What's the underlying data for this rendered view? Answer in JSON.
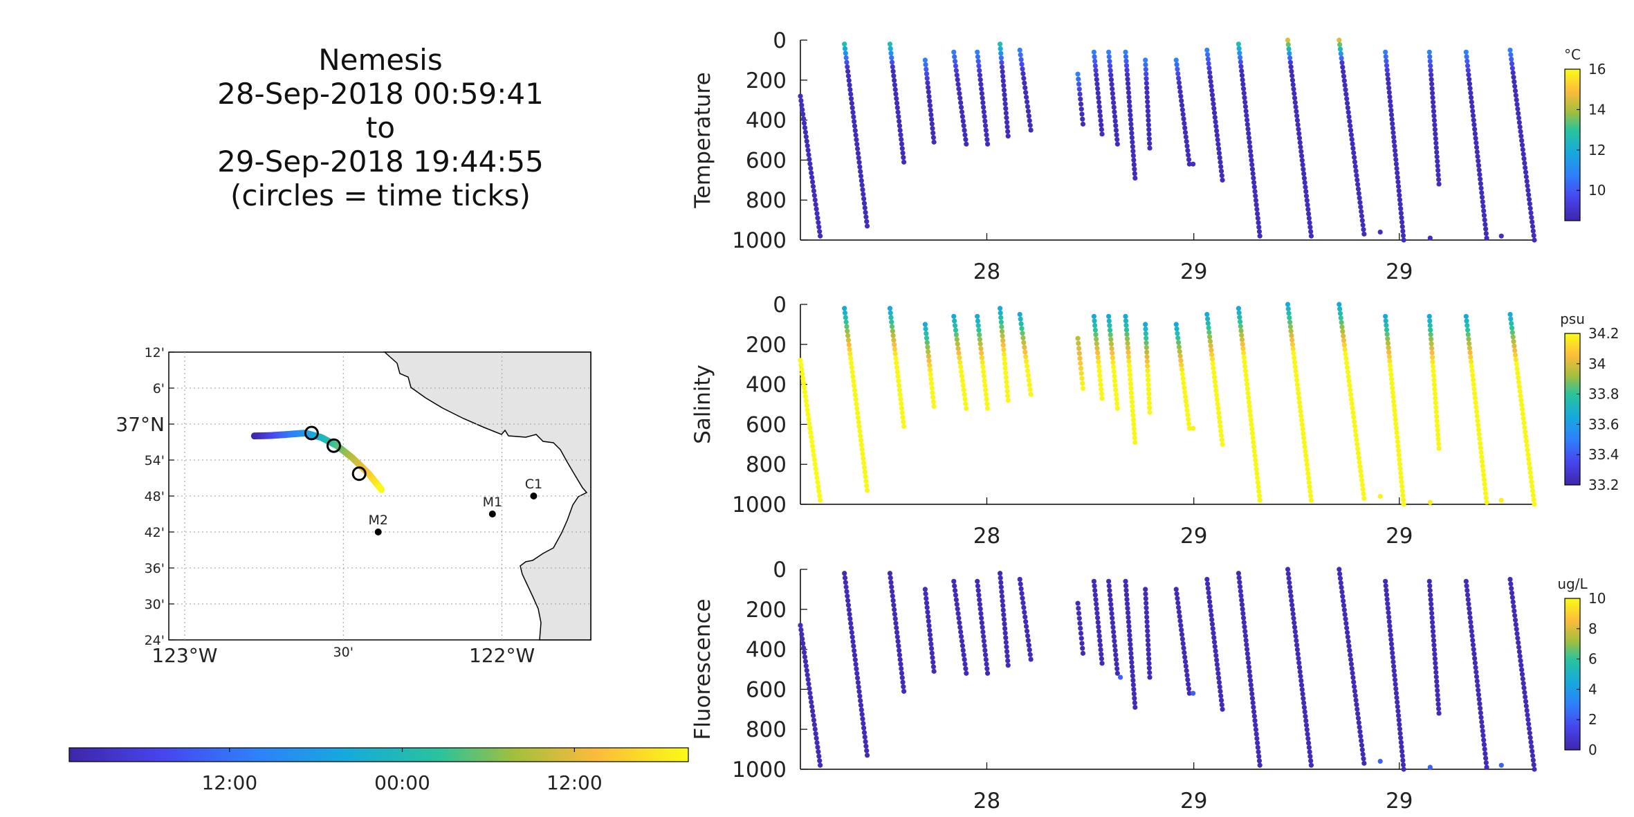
{
  "title_lines": [
    "Nemesis",
    "28-Sep-2018 00:59:41",
    "to",
    "29-Sep-2018 19:44:55",
    "(circles = time ticks)"
  ],
  "map": {
    "lat_ticks": [
      "12'",
      "6'",
      "37°N",
      "54'",
      "48'",
      "42'",
      "36'",
      "30'",
      "24'"
    ],
    "lon_ticks": [
      "123°W",
      "30'",
      "122°W"
    ],
    "stations": [
      {
        "label": "M2",
        "lon": -122.39,
        "lat": 36.7
      },
      {
        "label": "M1",
        "lon": -122.03,
        "lat": 36.75
      },
      {
        "label": "C1",
        "lon": -121.9,
        "lat": 36.8
      }
    ],
    "track": [
      [
        -122.78,
        36.967
      ],
      [
        -122.73,
        36.968
      ],
      [
        -122.68,
        36.971
      ],
      [
        -122.62,
        36.975
      ],
      [
        -122.57,
        36.963
      ],
      [
        -122.52,
        36.94
      ],
      [
        -122.47,
        36.905
      ],
      [
        -122.42,
        36.862
      ],
      [
        -122.38,
        36.818
      ]
    ],
    "time_circles": [
      [
        -122.6,
        36.975
      ],
      [
        -122.53,
        36.94
      ],
      [
        -122.45,
        36.862
      ]
    ]
  },
  "time_colorbar": {
    "tick_labels": [
      "12:00",
      "00:00",
      "12:00"
    ],
    "tick_fractions": [
      0.259,
      0.538,
      0.816
    ]
  },
  "chart_data": [
    {
      "type": "scatter",
      "ylabel": "Temperature",
      "units": "°C",
      "x_tick_labels": [
        "28",
        "29",
        "29"
      ],
      "y_ticks": [
        0,
        200,
        400,
        600,
        800,
        1000
      ],
      "ylim": [
        1000,
        0
      ],
      "clim": [
        8.5,
        16
      ],
      "colorbar_ticks": [
        10,
        12,
        14,
        16
      ]
    },
    {
      "type": "scatter",
      "ylabel": "Salinity",
      "units": "psu",
      "x_tick_labels": [
        "28",
        "29",
        "29"
      ],
      "y_ticks": [
        0,
        200,
        400,
        600,
        800,
        1000
      ],
      "ylim": [
        1000,
        0
      ],
      "clim": [
        33.2,
        34.2
      ],
      "colorbar_ticks": [
        33.2,
        33.4,
        33.6,
        33.8,
        34,
        34.2
      ]
    },
    {
      "type": "scatter",
      "ylabel": "Fluorescence",
      "units": "ug/L",
      "x_tick_labels": [
        "28",
        "29",
        "29"
      ],
      "y_ticks": [
        0,
        200,
        400,
        600,
        800,
        1000
      ],
      "ylim": [
        1000,
        0
      ],
      "clim": [
        0,
        10
      ],
      "colorbar_ticks": [
        0,
        2,
        4,
        6,
        8,
        10
      ]
    }
  ],
  "profiles": {
    "x_tick_fractions": [
      0.254,
      0.536,
      0.816
    ],
    "casts": [
      {
        "x0": 0.0,
        "x1": 0.027,
        "top": 280,
        "bot": 980,
        "t": "deep",
        "s": "deep",
        "f": "deep"
      },
      {
        "x0": 0.06,
        "x1": 0.091,
        "top": 20,
        "bot": 930,
        "t": "warm",
        "s": "fresh",
        "f": "deep"
      },
      {
        "x0": 0.122,
        "x1": 0.141,
        "top": 20,
        "bot": 610,
        "t": "warm",
        "s": "fresh",
        "f": "deep"
      },
      {
        "x0": 0.17,
        "x1": 0.182,
        "top": 100,
        "bot": 510,
        "t": "mid",
        "s": "fresh",
        "f": "deep"
      },
      {
        "x0": 0.209,
        "x1": 0.226,
        "top": 60,
        "bot": 520,
        "t": "mid",
        "s": "fresh",
        "f": "deep"
      },
      {
        "x0": 0.241,
        "x1": 0.255,
        "top": 60,
        "bot": 520,
        "t": "mid",
        "s": "fresh",
        "f": "deep"
      },
      {
        "x0": 0.272,
        "x1": 0.283,
        "top": 20,
        "bot": 480,
        "t": "warm",
        "s": "fresh",
        "f": "deep"
      },
      {
        "x0": 0.299,
        "x1": 0.314,
        "top": 50,
        "bot": 450,
        "t": "mid",
        "s": "fresh",
        "f": "deep"
      },
      {
        "x0": 0.378,
        "x1": 0.385,
        "top": 170,
        "bot": 420,
        "t": "mid",
        "s": "mid",
        "f": "deep"
      },
      {
        "x0": 0.4,
        "x1": 0.411,
        "top": 60,
        "bot": 470,
        "t": "mid",
        "s": "fresh",
        "f": "deep"
      },
      {
        "x0": 0.42,
        "x1": 0.432,
        "top": 60,
        "bot": 520,
        "t": "mid",
        "s": "fresh",
        "f": "deep"
      },
      {
        "x0": 0.443,
        "x1": 0.456,
        "top": 60,
        "bot": 690,
        "t": "mid",
        "s": "fresh",
        "f": "deep"
      },
      {
        "x0": 0.47,
        "x1": 0.476,
        "top": 100,
        "bot": 540,
        "t": "mid",
        "s": "fresh",
        "f": "deep"
      },
      {
        "x0": 0.512,
        "x1": 0.53,
        "top": 100,
        "bot": 620,
        "t": "mid",
        "s": "fresh",
        "f": "deep"
      },
      {
        "x0": 0.554,
        "x1": 0.575,
        "top": 50,
        "bot": 700,
        "t": "mid",
        "s": "fresh",
        "f": "deep"
      },
      {
        "x0": 0.597,
        "x1": 0.626,
        "top": 20,
        "bot": 980,
        "t": "warm",
        "s": "fresh",
        "f": "deep"
      },
      {
        "x0": 0.664,
        "x1": 0.696,
        "top": 0,
        "bot": 980,
        "t": "hot",
        "s": "fresh",
        "f": "deep"
      },
      {
        "x0": 0.734,
        "x1": 0.768,
        "top": 0,
        "bot": 970,
        "t": "hot",
        "s": "fresh",
        "f": "deep"
      },
      {
        "x0": 0.797,
        "x1": 0.822,
        "top": 60,
        "bot": 1000,
        "t": "mid",
        "s": "fresh",
        "f": "deep"
      },
      {
        "x0": 0.857,
        "x1": 0.87,
        "top": 60,
        "bot": 720,
        "t": "mid",
        "s": "fresh",
        "f": "deep"
      },
      {
        "x0": 0.907,
        "x1": 0.935,
        "top": 60,
        "bot": 990,
        "t": "mid",
        "s": "fresh",
        "f": "deep"
      },
      {
        "x0": 0.967,
        "x1": 1.0,
        "top": 50,
        "bot": 1000,
        "t": "mid",
        "s": "fresh",
        "f": "deep"
      }
    ],
    "single_points": [
      {
        "x": 0.436,
        "y": 540,
        "panels": [
          2
        ]
      },
      {
        "x": 0.535,
        "y": 620,
        "panels": [
          0,
          1,
          2
        ]
      },
      {
        "x": 0.79,
        "y": 960,
        "panels": [
          0,
          1,
          2
        ]
      },
      {
        "x": 0.858,
        "y": 990,
        "panels": [
          0,
          1,
          2
        ]
      },
      {
        "x": 0.955,
        "y": 980,
        "panels": [
          0,
          1,
          2
        ]
      }
    ]
  }
}
